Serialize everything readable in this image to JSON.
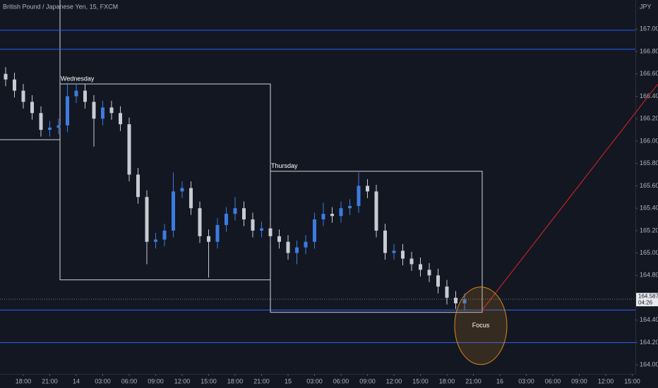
{
  "chart_data": {
    "type": "candlestick",
    "title": "British Pound / Japanese Yen, 15, FXCM",
    "currency": "JPY",
    "colors": {
      "up": "#3d7be0",
      "down": "#c8cbd2",
      "level": "#2962ff",
      "trendline": "#e02424",
      "focus": "#d98a1c"
    },
    "x": [
      -2,
      -1,
      0,
      1,
      2,
      3,
      4,
      5,
      6,
      7,
      8,
      9,
      10,
      11,
      12,
      13,
      14,
      15,
      16,
      17,
      18,
      19,
      20,
      21,
      22,
      23,
      24,
      25,
      26,
      27,
      28,
      29,
      30,
      31,
      32,
      33,
      34,
      35,
      36,
      37,
      38,
      39,
      40,
      41,
      42,
      43,
      44,
      45,
      46,
      47,
      48,
      49,
      50
    ],
    "open": [
      166.6,
      166.55,
      166.45,
      166.35,
      166.25,
      166.1,
      166.12,
      166.14,
      166.4,
      166.45,
      166.35,
      166.2,
      166.3,
      166.25,
      166.15,
      165.7,
      165.5,
      165.1,
      165.12,
      165.2,
      165.55,
      165.58,
      165.4,
      165.15,
      165.1,
      165.25,
      165.35,
      165.4,
      165.3,
      165.2,
      165.22,
      165.15,
      165.1,
      165.0,
      165.05,
      165.1,
      165.3,
      165.35,
      165.33,
      165.4,
      165.42,
      165.6,
      165.55,
      165.2,
      165.0,
      165.02,
      164.95,
      164.9,
      164.85,
      164.8,
      164.7,
      164.6,
      164.55
    ],
    "high": [
      166.66,
      166.61,
      166.51,
      166.41,
      166.31,
      166.18,
      166.2,
      166.52,
      166.51,
      166.51,
      166.41,
      166.36,
      166.36,
      166.31,
      166.21,
      165.76,
      165.56,
      165.18,
      165.26,
      165.72,
      165.64,
      165.64,
      165.46,
      165.21,
      165.31,
      165.41,
      165.5,
      165.46,
      165.36,
      165.28,
      165.28,
      165.21,
      165.16,
      165.11,
      165.16,
      165.36,
      165.45,
      165.41,
      165.46,
      165.48,
      165.72,
      165.66,
      165.61,
      165.26,
      165.08,
      165.08,
      165.01,
      164.96,
      164.91,
      164.86,
      164.76,
      164.66,
      164.64
    ],
    "low": [
      166.49,
      166.39,
      166.29,
      166.19,
      166.04,
      166.04,
      166.06,
      166.08,
      166.34,
      166.29,
      165.95,
      166.14,
      166.19,
      166.09,
      165.64,
      165.44,
      164.9,
      165.04,
      165.06,
      165.14,
      165.49,
      165.34,
      165.09,
      164.78,
      165.04,
      165.19,
      165.29,
      165.24,
      165.14,
      165.14,
      165.09,
      165.04,
      164.94,
      164.9,
      164.99,
      165.04,
      165.24,
      165.27,
      165.27,
      165.34,
      165.36,
      165.49,
      165.14,
      164.94,
      164.94,
      164.89,
      164.84,
      164.79,
      164.74,
      164.64,
      164.54,
      164.5,
      164.49
    ],
    "close": [
      166.55,
      166.45,
      166.35,
      166.25,
      166.1,
      166.12,
      166.14,
      166.4,
      166.45,
      166.35,
      166.2,
      166.3,
      166.25,
      166.15,
      165.7,
      165.5,
      165.1,
      165.12,
      165.2,
      165.55,
      165.58,
      165.4,
      165.15,
      165.1,
      165.25,
      165.35,
      165.4,
      165.3,
      165.2,
      165.22,
      165.15,
      165.1,
      165.0,
      165.05,
      165.1,
      165.3,
      165.35,
      165.33,
      165.4,
      165.42,
      165.6,
      165.55,
      165.2,
      165.0,
      165.02,
      164.95,
      164.9,
      164.85,
      164.8,
      164.7,
      164.6,
      164.55,
      164.587
    ],
    "xlim": [
      -2.64,
      69.36
    ],
    "ylim": [
      163.92,
      167.26
    ],
    "xticks": [
      {
        "value": 0,
        "label": "18:00"
      },
      {
        "value": 3,
        "label": "21:00"
      },
      {
        "value": 6,
        "label": "14"
      },
      {
        "value": 9,
        "label": "03:00"
      },
      {
        "value": 12,
        "label": "06:00"
      },
      {
        "value": 15,
        "label": "09:00"
      },
      {
        "value": 18,
        "label": "12:00"
      },
      {
        "value": 21,
        "label": "15:00"
      },
      {
        "value": 24,
        "label": "18:00"
      },
      {
        "value": 27,
        "label": "21:00"
      },
      {
        "value": 30,
        "label": "15"
      },
      {
        "value": 33,
        "label": "03:00"
      },
      {
        "value": 36,
        "label": "06:00"
      },
      {
        "value": 39,
        "label": "09:00"
      },
      {
        "value": 42,
        "label": "12:00"
      },
      {
        "value": 45,
        "label": "15:00"
      },
      {
        "value": 48,
        "label": "18:00"
      },
      {
        "value": 51,
        "label": "21:00"
      },
      {
        "value": 54,
        "label": "16"
      },
      {
        "value": 57,
        "label": "03:00"
      },
      {
        "value": 60,
        "label": "06:00"
      },
      {
        "value": 63,
        "label": "09:00"
      },
      {
        "value": 66,
        "label": "12:00"
      },
      {
        "value": 69,
        "label": "15:00"
      }
    ],
    "yticks": [
      {
        "value": 167.0,
        "label": "167.000"
      },
      {
        "value": 166.8,
        "label": "166.800"
      },
      {
        "value": 166.6,
        "label": "166.600"
      },
      {
        "value": 166.4,
        "label": "166.400"
      },
      {
        "value": 166.2,
        "label": "166.200"
      },
      {
        "value": 166.0,
        "label": "166.000"
      },
      {
        "value": 165.8,
        "label": "165.800"
      },
      {
        "value": 165.6,
        "label": "165.600"
      },
      {
        "value": 165.4,
        "label": "165.400"
      },
      {
        "value": 165.2,
        "label": "165.200"
      },
      {
        "value": 165.0,
        "label": "165.000"
      },
      {
        "value": 164.8,
        "label": "164.800"
      },
      {
        "value": 164.6,
        "label": "164.600"
      },
      {
        "value": 164.4,
        "label": "164.400"
      },
      {
        "value": 164.2,
        "label": "164.200"
      },
      {
        "value": 164.0,
        "label": "164.000"
      }
    ],
    "levels": [
      166.99,
      166.82,
      164.49,
      164.2
    ],
    "sessions": [
      {
        "label": "Wednesday",
        "x": [
          4.16,
          28
        ],
        "y": [
          164.76,
          166.51
        ]
      },
      {
        "label": "Thursday",
        "x": [
          28,
          52
        ],
        "y": [
          164.47,
          165.73
        ]
      }
    ],
    "trendline": {
      "x": [
        52,
        71.9
      ],
      "y": [
        164.49,
        166.51
      ]
    },
    "focus": {
      "label": "Focus",
      "x": 51.84,
      "y": 164.35
    },
    "last_price": {
      "value": 164.587,
      "label": "164.587"
    },
    "countdown": "04:26"
  }
}
